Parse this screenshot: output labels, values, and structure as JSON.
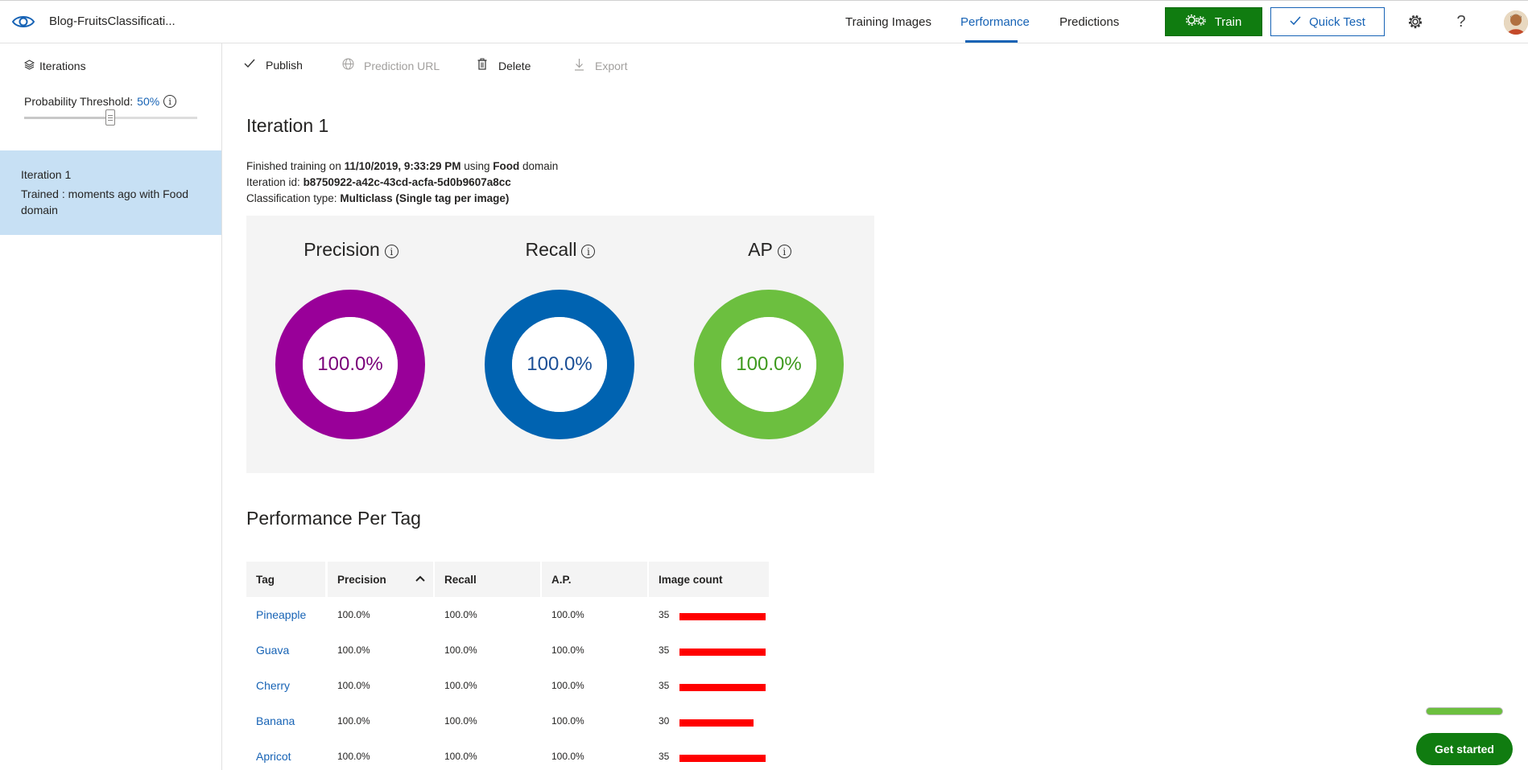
{
  "header": {
    "project_name": "Blog-FruitsClassificati...",
    "nav": [
      "Training Images",
      "Performance",
      "Predictions"
    ],
    "active_nav": "Performance",
    "train_label": "Train",
    "quick_test_label": "Quick Test",
    "help_glyph": "?",
    "icons": [
      "eye-logo-icon",
      "gear-icon",
      "help-icon",
      "avatar"
    ]
  },
  "sidebar": {
    "iterations_label": "Iterations",
    "threshold_label": "Probability Threshold:",
    "threshold_value": "50%",
    "threshold_fraction": 0.5,
    "iteration": {
      "name": "Iteration 1",
      "description": "Trained : moments ago with Food domain"
    }
  },
  "toolbar": {
    "publish": "Publish",
    "prediction_url": "Prediction URL",
    "delete": "Delete",
    "export": "Export"
  },
  "main": {
    "title": "Iteration 1",
    "finished_prefix": "Finished training on",
    "finished_date": "11/10/2019, 9:33:29 PM",
    "finished_using": "using",
    "domain": "Food",
    "domain_suffix": "domain",
    "iteration_id_label": "Iteration id:",
    "iteration_id": "b8750922-a42c-43cd-acfa-5d0b9607a8cc",
    "classification_label": "Classification type:",
    "classification_value": "Multiclass (Single tag per image)"
  },
  "metrics": [
    {
      "label": "Precision",
      "value": "100.0%",
      "fraction": 1.0,
      "color": "#990099",
      "text_color": "#7a007a"
    },
    {
      "label": "Recall",
      "value": "100.0%",
      "fraction": 1.0,
      "color": "#0063b1",
      "text_color": "#1b4f96"
    },
    {
      "label": "AP",
      "value": "100.0%",
      "fraction": 1.0,
      "color": "#6cbf3f",
      "text_color": "#3e9a1e"
    }
  ],
  "per_tag": {
    "title": "Performance Per Tag",
    "columns": [
      "Tag",
      "Precision",
      "Recall",
      "A.P.",
      "Image count"
    ],
    "sorted_column": "Precision",
    "max_count": 35,
    "bar_color": "#ff0000",
    "rows": [
      {
        "tag": "Pineapple",
        "precision": "100.0%",
        "recall": "100.0%",
        "ap": "100.0%",
        "count": "35"
      },
      {
        "tag": "Guava",
        "precision": "100.0%",
        "recall": "100.0%",
        "ap": "100.0%",
        "count": "35"
      },
      {
        "tag": "Cherry",
        "precision": "100.0%",
        "recall": "100.0%",
        "ap": "100.0%",
        "count": "35"
      },
      {
        "tag": "Banana",
        "precision": "100.0%",
        "recall": "100.0%",
        "ap": "100.0%",
        "count": "30"
      },
      {
        "tag": "Apricot",
        "precision": "100.0%",
        "recall": "100.0%",
        "ap": "100.0%",
        "count": "35"
      }
    ]
  },
  "get_started": {
    "label": "Get started",
    "progress_fraction": 1.0
  }
}
